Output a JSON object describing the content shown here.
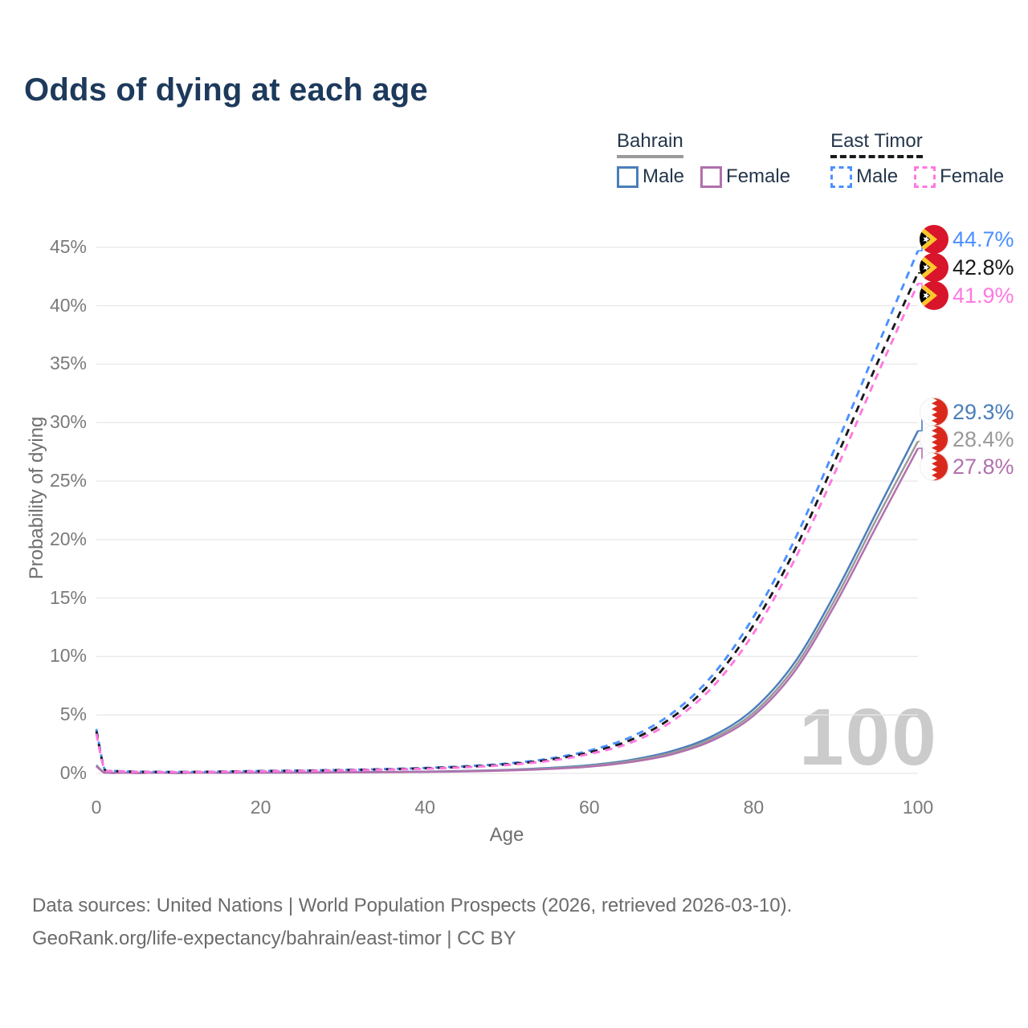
{
  "title": "Odds of dying at each age",
  "legend": {
    "groups": [
      {
        "name": "Bahrain",
        "style": "solid",
        "items": [
          {
            "label": "Male",
            "series": "bahrain-male"
          },
          {
            "label": "Female",
            "series": "bahrain-female"
          }
        ]
      },
      {
        "name": "East Timor",
        "style": "dashed",
        "items": [
          {
            "label": "Male",
            "series": "east-timor-male"
          },
          {
            "label": "Female",
            "series": "east-timor-female"
          }
        ]
      }
    ]
  },
  "watermark": "100",
  "footer": {
    "line1": "Data sources: United Nations | World Population Prospects (2026, retrieved 2026-03-10).",
    "line2": "GeoRank.org/life-expectancy/bahrain/east-timor | CC BY"
  },
  "end_labels": [
    {
      "series": "east-timor-male",
      "text": "44.7%",
      "color": "#4a90ff",
      "flag": "east-timor"
    },
    {
      "series": "east-timor-all",
      "text": "42.8%",
      "color": "#1a1a1a",
      "flag": "east-timor"
    },
    {
      "series": "east-timor-female",
      "text": "41.9%",
      "color": "#ff78e0",
      "flag": "east-timor"
    },
    {
      "series": "bahrain-male",
      "text": "29.3%",
      "color": "#4a7eba",
      "flag": "bahrain"
    },
    {
      "series": "bahrain-all",
      "text": "28.4%",
      "color": "#9a9a9a",
      "flag": "bahrain"
    },
    {
      "series": "bahrain-female",
      "text": "27.8%",
      "color": "#b170ad",
      "flag": "bahrain"
    }
  ],
  "chart_data": {
    "type": "line",
    "title": "Odds of dying at each age",
    "xlabel": "Age",
    "ylabel": "Probability of dying",
    "xlim": [
      0,
      100
    ],
    "ylim": [
      0,
      45
    ],
    "x_ticks": [
      "0",
      "20",
      "40",
      "60",
      "80",
      "100"
    ],
    "y_ticks": [
      "45%",
      "40%",
      "35%",
      "30%",
      "25%",
      "20%",
      "15%",
      "10%",
      "5%",
      "0%"
    ],
    "grid": true,
    "legend_position": "top-right",
    "x": [
      0,
      1,
      2,
      5,
      10,
      15,
      20,
      25,
      30,
      35,
      40,
      45,
      50,
      55,
      60,
      65,
      70,
      75,
      80,
      85,
      90,
      95,
      100
    ],
    "series": [
      {
        "key": "bahrain-male",
        "name": "Bahrain Male",
        "color": "#4a7eba",
        "dash": null,
        "end_label": "29.3%",
        "values": [
          0.7,
          0.06,
          0.04,
          0.03,
          0.03,
          0.05,
          0.07,
          0.08,
          0.1,
          0.12,
          0.16,
          0.21,
          0.31,
          0.46,
          0.7,
          1.15,
          1.9,
          3.2,
          5.5,
          9.5,
          15.5,
          22.4,
          29.3
        ]
      },
      {
        "key": "bahrain-all",
        "name": "Bahrain Both sexes",
        "color": "#9a9a9a",
        "dash": null,
        "end_label": "28.4%",
        "values": [
          0.65,
          0.055,
          0.038,
          0.028,
          0.028,
          0.045,
          0.06,
          0.07,
          0.09,
          0.11,
          0.14,
          0.19,
          0.28,
          0.42,
          0.64,
          1.06,
          1.76,
          3.0,
          5.2,
          9.1,
          15.0,
          21.8,
          28.4
        ]
      },
      {
        "key": "bahrain-female",
        "name": "Bahrain Female",
        "color": "#b170ad",
        "dash": null,
        "end_label": "27.8%",
        "values": [
          0.6,
          0.05,
          0.035,
          0.026,
          0.026,
          0.04,
          0.055,
          0.065,
          0.08,
          0.1,
          0.13,
          0.17,
          0.25,
          0.38,
          0.58,
          0.97,
          1.62,
          2.82,
          4.95,
          8.75,
          14.55,
          21.2,
          27.8
        ]
      },
      {
        "key": "east-timor-male",
        "name": "East Timor Male",
        "color": "#4a90ff",
        "dash": "9 7",
        "end_label": "44.7%",
        "values": [
          3.8,
          0.35,
          0.22,
          0.15,
          0.13,
          0.16,
          0.21,
          0.25,
          0.3,
          0.37,
          0.47,
          0.62,
          0.85,
          1.25,
          1.95,
          3.1,
          5.1,
          8.4,
          13.4,
          20.0,
          28.0,
          36.4,
          44.7
        ]
      },
      {
        "key": "east-timor-all",
        "name": "East Timor Both sexes",
        "color": "#1a1a1a",
        "dash": "9 7",
        "end_label": "42.8%",
        "values": [
          3.6,
          0.33,
          0.21,
          0.14,
          0.12,
          0.15,
          0.19,
          0.23,
          0.28,
          0.34,
          0.44,
          0.57,
          0.78,
          1.15,
          1.8,
          2.85,
          4.75,
          7.9,
          12.7,
          19.1,
          26.9,
          35.0,
          42.8
        ]
      },
      {
        "key": "east-timor-female",
        "name": "East Timor Female",
        "color": "#ff78e0",
        "dash": "9 7",
        "end_label": "41.9%",
        "values": [
          3.4,
          0.31,
          0.2,
          0.13,
          0.11,
          0.14,
          0.18,
          0.21,
          0.26,
          0.32,
          0.4,
          0.53,
          0.72,
          1.06,
          1.66,
          2.62,
          4.42,
          7.4,
          12.0,
          18.3,
          25.9,
          34.0,
          41.9
        ]
      }
    ]
  }
}
